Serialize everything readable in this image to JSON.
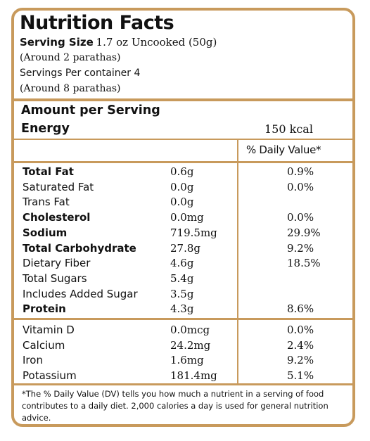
{
  "title": "Nutrition Facts",
  "serving": {
    "size_label": "Serving Size",
    "size_value": "1.7 oz Uncooked (50g)",
    "size_note": "(Around 2 parathas)",
    "per_container": "Servings Per container 4",
    "per_container_note": "(Around 8 parathas)"
  },
  "energy": {
    "amount_header": "Amount per Serving",
    "label": "Energy",
    "value": "150 kcal"
  },
  "dv_header": "% Daily Value*",
  "nutrients": [
    {
      "name": "Total Fat",
      "amount": "0.6g",
      "dv": "0.9%",
      "bold": true
    },
    {
      "name": "Saturated Fat",
      "amount": "0.0g",
      "dv": "0.0%",
      "bold": false
    },
    {
      "name": "Trans Fat",
      "amount": "0.0g",
      "dv": "",
      "bold": false
    },
    {
      "name": "Cholesterol",
      "amount": "0.0mg",
      "dv": "0.0%",
      "bold": true
    },
    {
      "name": "Sodium",
      "amount": "719.5mg",
      "dv": "29.9%",
      "bold": true
    },
    {
      "name": "Total Carbohydrate",
      "amount": "27.8g",
      "dv": "9.2%",
      "bold": true
    },
    {
      "name": "Dietary Fiber",
      "amount": "4.6g",
      "dv": "18.5%",
      "bold": false
    },
    {
      "name": "Total Sugars",
      "amount": "5.4g",
      "dv": "",
      "bold": false
    },
    {
      "name": "Includes Added Sugar",
      "amount": "3.5g",
      "dv": "",
      "bold": false
    },
    {
      "name": "Protein",
      "amount": "4.3g",
      "dv": "8.6%",
      "bold": true
    }
  ],
  "vitamins": [
    {
      "name": "Vitamin D",
      "amount": "0.0mcg",
      "dv": "0.0%"
    },
    {
      "name": "Calcium",
      "amount": "24.2mg",
      "dv": "2.4%"
    },
    {
      "name": "Iron",
      "amount": "1.6mg",
      "dv": "9.2%"
    },
    {
      "name": "Potassium",
      "amount": "181.4mg",
      "dv": "5.1%"
    }
  ],
  "footnote": "*The % Daily Value (DV) tells you how much a nutrient in a serving of food contributes to a daily diet. 2,000 calories a day is used for general nutrition advice.",
  "colors": {
    "border": "#c89a5c",
    "text": "#111111"
  }
}
